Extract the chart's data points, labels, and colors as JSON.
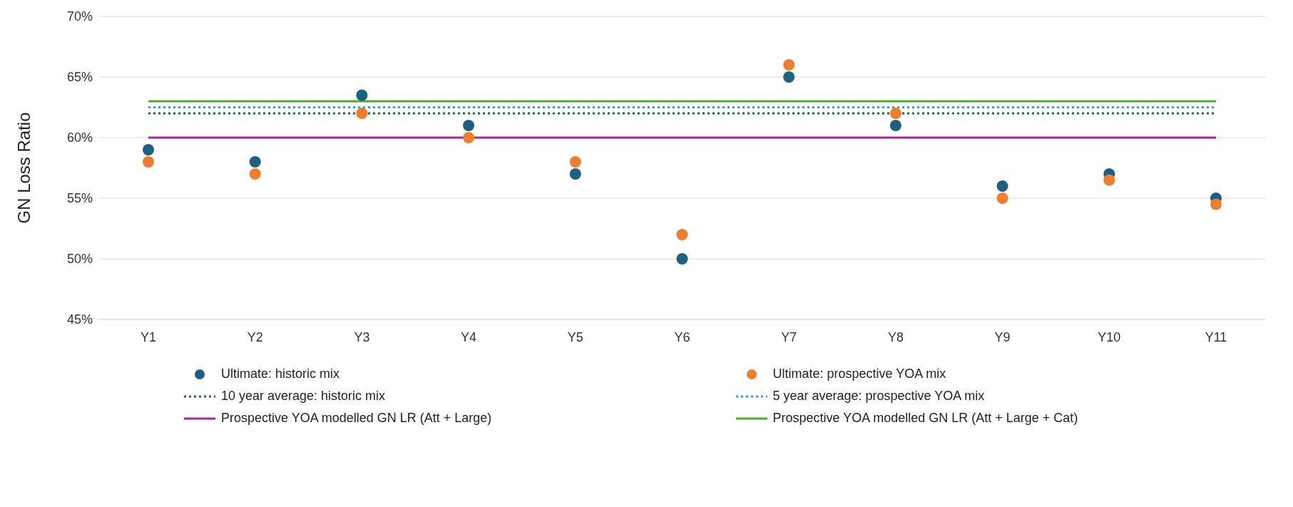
{
  "chart_data": {
    "type": "scatter",
    "ylabel": "GN Loss Ratio",
    "categories": [
      "Y1",
      "Y2",
      "Y3",
      "Y4",
      "Y5",
      "Y6",
      "Y7",
      "Y8",
      "Y9",
      "Y10",
      "Y11"
    ],
    "ylim": [
      45,
      70
    ],
    "yticks": [
      {
        "value": 45,
        "label": "45%"
      },
      {
        "value": 50,
        "label": "50%"
      },
      {
        "value": 55,
        "label": "55%"
      },
      {
        "value": 60,
        "label": "60%"
      },
      {
        "value": 65,
        "label": "65%"
      },
      {
        "value": 70,
        "label": "70%"
      }
    ],
    "grid": "y",
    "legend": "bottom",
    "series": [
      {
        "name": "Ultimate: historic mix",
        "marker": "circle",
        "color": "#1f5f7f",
        "values": [
          59,
          58,
          63.5,
          61,
          57,
          50,
          65,
          61,
          56,
          57,
          55
        ]
      },
      {
        "name": "Ultimate: prospective YOA mix",
        "type": "scatter",
        "marker": "circle",
        "color": "#ed7d31",
        "values": [
          58,
          57,
          62,
          60,
          58,
          52,
          66,
          62,
          55,
          56.5,
          54.5
        ]
      },
      {
        "name": "10 year average: historic mix",
        "type": "line",
        "line_style": "dotted",
        "color": "#1e6b2e",
        "values": [
          62,
          62,
          62,
          62,
          62,
          62,
          62,
          62,
          62,
          62,
          62
        ]
      },
      {
        "name": "5 year average: prospective YOA mix",
        "type": "line",
        "line_style": "dotted",
        "color": "#1ea7e1",
        "values": [
          62.5,
          62.5,
          62.5,
          62.5,
          62.5,
          62.5,
          62.5,
          62.5,
          62.5,
          62.5,
          62.5
        ]
      },
      {
        "name": "Prospective YOA modelled GN LR (Att + Large)",
        "type": "line",
        "line_style": "solid",
        "color": "#a0299a",
        "values": [
          60,
          60,
          60,
          60,
          60,
          60,
          60,
          60,
          60,
          60,
          60
        ]
      },
      {
        "name": "Prospective YOA modelled GN LR (Att + Large + Cat)",
        "type": "line",
        "line_style": "solid",
        "color": "#4daa2c",
        "values": [
          63,
          63,
          63,
          63,
          63,
          63,
          63,
          63,
          63,
          63,
          63
        ]
      }
    ]
  }
}
